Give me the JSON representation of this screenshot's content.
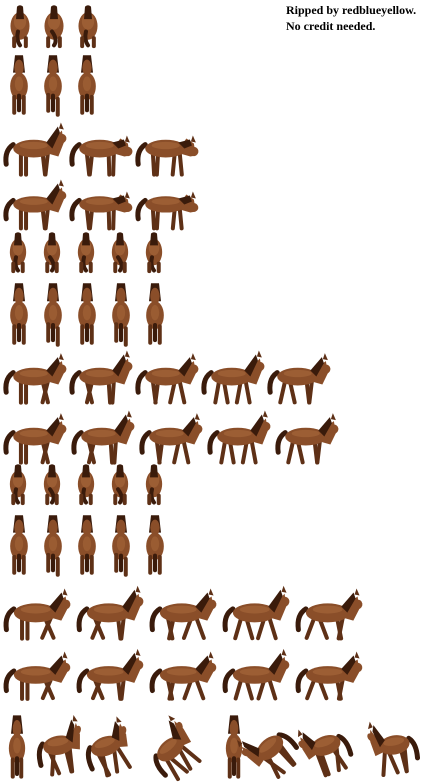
{
  "credits": {
    "line1": "Ripped by redblueyellow.",
    "line2": "No credit needed."
  },
  "subject": "horse",
  "colors": {
    "body": "#8a4e29",
    "shade": "#5e3016",
    "mane": "#3a1b0b",
    "highlight": "#b27342",
    "background": "#ffffff"
  },
  "rows": [
    {
      "name": "idle-back",
      "frames": 3
    },
    {
      "name": "idle-front",
      "frames": 3
    },
    {
      "name": "idle-side-right",
      "frames": 3
    },
    {
      "name": "idle-side-left",
      "frames": 3
    },
    {
      "name": "walk-back",
      "frames": 5
    },
    {
      "name": "walk-front",
      "frames": 5
    },
    {
      "name": "walk-side-right",
      "frames": 5
    },
    {
      "name": "walk-side-left",
      "frames": 5
    },
    {
      "name": "trot-back",
      "frames": 5
    },
    {
      "name": "trot-front",
      "frames": 5
    },
    {
      "name": "gallop-side-right",
      "frames": 5
    },
    {
      "name": "gallop-side-left",
      "frames": 5
    },
    {
      "name": "rear-sequence",
      "frames": 8
    }
  ]
}
